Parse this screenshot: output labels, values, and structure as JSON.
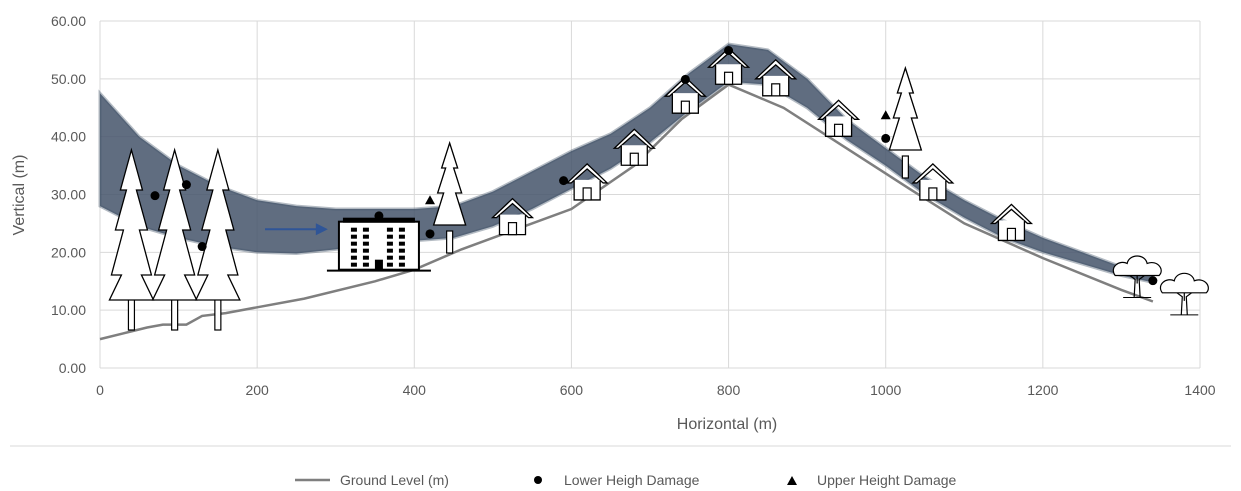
{
  "chart_data": {
    "type": "line",
    "xlabel": "Horizontal (m)",
    "ylabel": "Vertical (m)",
    "xlim": [
      0,
      1400
    ],
    "ylim": [
      0,
      60
    ],
    "x_ticks": [
      "0",
      "200",
      "400",
      "600",
      "800",
      "1000",
      "1200",
      "1400"
    ],
    "y_ticks": [
      "0.00",
      "10.00",
      "20.00",
      "30.00",
      "40.00",
      "50.00",
      "60.00"
    ],
    "grid": true,
    "legend_position": "bottom",
    "legend": {
      "ground": "Ground Level (m)",
      "lower": "Lower Heigh Damage",
      "upper": "Upper Height Damage"
    },
    "colors": {
      "ground": "#7f7f7f",
      "band": "#44546a",
      "markers": "#000000",
      "grid": "#d9d9d9"
    },
    "ground_level": {
      "x": [
        0,
        30,
        60,
        80,
        100,
        110,
        130,
        160,
        200,
        260,
        350,
        400,
        460,
        520,
        600,
        680,
        740,
        800,
        870,
        950,
        1030,
        1100,
        1200,
        1300,
        1340
      ],
      "y": [
        5,
        6,
        7,
        7.5,
        7.5,
        7.5,
        9,
        9.5,
        10.5,
        12,
        15,
        17,
        20.5,
        23.5,
        27.5,
        35,
        43,
        49,
        45,
        38,
        31,
        25,
        19,
        13.5,
        11.5
      ]
    },
    "flow_band": {
      "x": [
        0,
        50,
        100,
        150,
        200,
        250,
        300,
        350,
        400,
        450,
        500,
        550,
        600,
        650,
        700,
        750,
        800,
        850,
        900,
        950,
        1000,
        1050,
        1100,
        1150,
        1200,
        1250,
        1300,
        1340
      ],
      "upper": [
        47.5,
        40,
        35,
        31.5,
        29,
        28,
        27.5,
        27.5,
        27.5,
        28,
        30.5,
        34,
        37.5,
        40.5,
        45,
        51,
        56,
        55,
        50,
        43,
        38,
        33,
        29,
        25.5,
        22.5,
        20,
        17.5,
        16
      ],
      "lower": [
        28,
        24.5,
        22.5,
        21,
        20,
        19.8,
        20.5,
        21.5,
        22,
        22.5,
        24.5,
        27.5,
        31,
        34.5,
        39,
        44.5,
        49.5,
        49,
        45,
        39.5,
        35,
        30,
        26,
        22.5,
        20,
        18,
        16,
        14.8
      ]
    },
    "lower_height_damage": {
      "x": [
        70,
        110,
        130,
        355,
        420,
        590,
        745,
        800,
        1000,
        1340
      ],
      "y": [
        29.8,
        31.7,
        21,
        26.3,
        23.2,
        32.4,
        49.9,
        54.9,
        39.7,
        15.1
      ]
    },
    "upper_height_damage": {
      "x": [
        420,
        1000
      ],
      "y": [
        29,
        43.7
      ]
    },
    "illustrations": {
      "conifers": [
        {
          "x": 40,
          "y": 20
        },
        {
          "x": 95,
          "y": 20
        },
        {
          "x": 150,
          "y": 20
        },
        {
          "x": 445,
          "y": 26
        },
        {
          "x": 1025,
          "y": 40
        }
      ],
      "houses": [
        {
          "x": 525,
          "y": 26
        },
        {
          "x": 620,
          "y": 32
        },
        {
          "x": 680,
          "y": 38
        },
        {
          "x": 745,
          "y": 47
        },
        {
          "x": 800,
          "y": 52
        },
        {
          "x": 860,
          "y": 50
        },
        {
          "x": 940,
          "y": 43
        },
        {
          "x": 1060,
          "y": 32
        },
        {
          "x": 1160,
          "y": 25
        }
      ],
      "deciduous": [
        {
          "x": 1320,
          "y": 16
        },
        {
          "x": 1380,
          "y": 13
        }
      ],
      "building": {
        "x": 355,
        "y": 17
      },
      "flow_arrow": {
        "x1": 210,
        "x2": 290,
        "y": 24
      }
    }
  }
}
